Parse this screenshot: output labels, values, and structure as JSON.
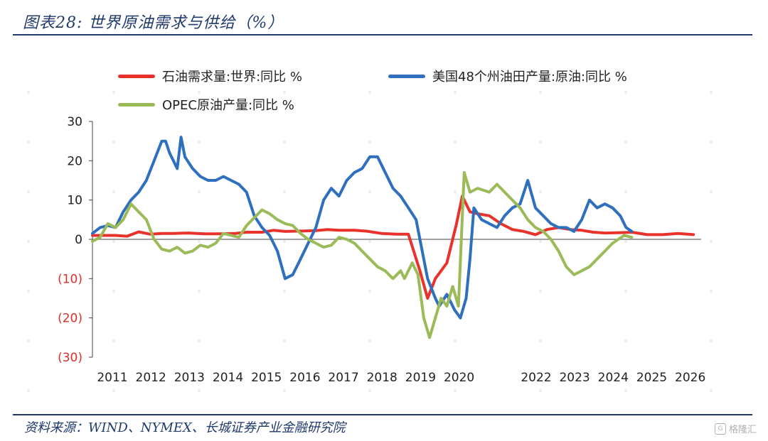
{
  "header": {
    "title": "图表28:  世界原油需求与供给（%）"
  },
  "footer": {
    "source": "资料来源：WIND、NYMEX、长城证券产业金融研究院"
  },
  "watermark": {
    "text": "格隆汇"
  },
  "chart_data": {
    "type": "line",
    "title": "",
    "xlabel": "",
    "ylabel": "",
    "ylim": [
      -30,
      30
    ],
    "xlim": [
      2011,
      2026.8
    ],
    "y_ticks": [
      30,
      20,
      10,
      0,
      -10,
      -20,
      -30
    ],
    "y_tick_labels": [
      "30",
      "20",
      "10",
      "0",
      "(10)",
      "(20)",
      "(30)"
    ],
    "x_ticks": [
      2011,
      2012,
      2013,
      2014,
      2015,
      2016,
      2017,
      2018,
      2019,
      2020,
      2022,
      2023,
      2024,
      2025,
      2026
    ],
    "x_tick_labels": [
      "2011",
      "2012",
      "2013",
      "2014",
      "2015",
      "2016",
      "2017",
      "2018",
      "2019",
      "2020",
      "2022",
      "2023",
      "2024",
      "2025",
      "2026"
    ],
    "grid": false,
    "legend_position": "top",
    "series": [
      {
        "name": "石油需求量:世界:同比 %",
        "color": "#e8322b",
        "x": [
          2011.0,
          2011.3,
          2011.6,
          2011.9,
          2012.2,
          2012.5,
          2012.8,
          2013.1,
          2013.5,
          2013.9,
          2014.3,
          2014.7,
          2015.0,
          2015.4,
          2015.7,
          2016.0,
          2016.4,
          2016.8,
          2017.1,
          2017.4,
          2017.8,
          2018.1,
          2018.5,
          2018.9,
          2019.2,
          2019.5,
          2019.7,
          2019.9,
          2020.05,
          2020.2,
          2020.45,
          2020.6,
          2020.8,
          2021.0,
          2021.3,
          2021.6,
          2021.9,
          2022.2,
          2022.5,
          2022.8,
          2023.1,
          2023.4,
          2023.7,
          2024.0,
          2024.3,
          2024.7,
          2025.0,
          2025.4,
          2025.8,
          2026.2,
          2026.6
        ],
        "y": [
          1.0,
          1.0,
          1.0,
          0.8,
          1.9,
          1.3,
          1.5,
          1.5,
          1.6,
          1.4,
          1.4,
          1.5,
          1.8,
          1.8,
          2.3,
          2.0,
          2.1,
          2.2,
          2.5,
          2.3,
          2.3,
          2.1,
          1.5,
          1.3,
          1.3,
          -8.0,
          -15.0,
          -10.0,
          -8.0,
          -6.0,
          4.0,
          11.0,
          7.0,
          6.5,
          6.0,
          4.0,
          2.5,
          2.0,
          1.2,
          2.5,
          3.0,
          2.5,
          2.3,
          1.8,
          1.6,
          1.7,
          1.8,
          1.2,
          1.2,
          1.5,
          1.2
        ]
      },
      {
        "name": "美国48个州油田产量:原油:同比 %",
        "color": "#2e6fbe",
        "x": [
          2011.0,
          2011.2,
          2011.4,
          2011.6,
          2011.8,
          2012.0,
          2012.2,
          2012.4,
          2012.6,
          2012.8,
          2012.9,
          2013.0,
          2013.1,
          2013.2,
          2013.3,
          2013.4,
          2013.6,
          2013.8,
          2014.0,
          2014.2,
          2014.4,
          2014.6,
          2014.8,
          2015.0,
          2015.2,
          2015.4,
          2015.6,
          2015.8,
          2016.0,
          2016.2,
          2016.4,
          2016.6,
          2016.8,
          2017.0,
          2017.2,
          2017.4,
          2017.6,
          2017.8,
          2018.0,
          2018.2,
          2018.4,
          2018.6,
          2018.8,
          2019.0,
          2019.2,
          2019.4,
          2019.5,
          2019.7,
          2019.9,
          2020.0,
          2020.2,
          2020.4,
          2020.55,
          2020.7,
          2020.8,
          2020.9,
          2021.1,
          2021.3,
          2021.5,
          2021.7,
          2021.9,
          2022.1,
          2022.3,
          2022.5,
          2022.7,
          2022.9,
          2023.1,
          2023.3,
          2023.5,
          2023.7,
          2023.9,
          2024.1,
          2024.3,
          2024.5,
          2024.7,
          2024.85,
          2025.0
        ],
        "y": [
          1.5,
          3.0,
          3.5,
          3.0,
          7.0,
          10.0,
          12.0,
          15.0,
          20.0,
          25.0,
          25.0,
          22.0,
          20.0,
          18.0,
          26.0,
          21.0,
          18.0,
          16.0,
          15.0,
          15.0,
          16.0,
          15.0,
          14.0,
          12.0,
          6.0,
          3.0,
          1.0,
          -3.0,
          -10.0,
          -9.0,
          -5.0,
          -1.0,
          3.0,
          10.0,
          13.0,
          11.0,
          15.0,
          17.0,
          18.0,
          21.0,
          21.0,
          17.0,
          13.0,
          11.0,
          8.0,
          5.0,
          0.0,
          -10.0,
          -15.0,
          -17.0,
          -14.0,
          -18.0,
          -20.0,
          -15.0,
          -5.0,
          8.0,
          5.0,
          4.0,
          3.0,
          6.0,
          8.0,
          9.0,
          15.0,
          8.0,
          6.0,
          4.0,
          3.0,
          3.0,
          2.0,
          5.0,
          10.0,
          8.0,
          9.0,
          8.0,
          6.0,
          3.0,
          2.0
        ]
      },
      {
        "name": "OPEC原油产量:同比 %",
        "color": "#9bbb59",
        "x": [
          2011.0,
          2011.2,
          2011.4,
          2011.6,
          2011.8,
          2012.0,
          2012.2,
          2012.4,
          2012.6,
          2012.8,
          2013.0,
          2013.2,
          2013.4,
          2013.6,
          2013.8,
          2014.0,
          2014.2,
          2014.4,
          2014.6,
          2014.8,
          2015.0,
          2015.2,
          2015.4,
          2015.6,
          2015.8,
          2016.0,
          2016.2,
          2016.4,
          2016.6,
          2016.8,
          2017.0,
          2017.2,
          2017.4,
          2017.6,
          2017.8,
          2018.0,
          2018.2,
          2018.4,
          2018.6,
          2018.8,
          2019.0,
          2019.1,
          2019.3,
          2019.45,
          2019.6,
          2019.75,
          2019.9,
          2020.05,
          2020.2,
          2020.35,
          2020.5,
          2020.65,
          2020.8,
          2021.0,
          2021.3,
          2021.5,
          2021.7,
          2021.9,
          2022.1,
          2022.3,
          2022.5,
          2022.7,
          2022.9,
          2023.1,
          2023.3,
          2023.5,
          2023.7,
          2023.9,
          2024.1,
          2024.3,
          2024.5,
          2024.65,
          2024.8,
          2025.0
        ],
        "y": [
          -0.5,
          0.5,
          4.0,
          3.0,
          5.0,
          9.0,
          7.0,
          5.0,
          0.0,
          -2.5,
          -3.0,
          -2.0,
          -3.5,
          -3.0,
          -1.5,
          -2.0,
          -1.0,
          1.5,
          1.0,
          0.5,
          3.5,
          5.5,
          7.5,
          6.5,
          5.0,
          4.0,
          3.5,
          1.5,
          0.0,
          -1.0,
          -2.0,
          -1.5,
          0.5,
          0.0,
          -1.0,
          -3.0,
          -5.0,
          -7.0,
          -8.0,
          -10.0,
          -8.0,
          -10.0,
          -6.0,
          -9.0,
          -20.0,
          -25.0,
          -20.0,
          -15.0,
          -17.0,
          -12.0,
          -17.0,
          17.0,
          12.0,
          13.0,
          12.0,
          14.0,
          12.0,
          10.0,
          8.0,
          5.0,
          3.0,
          2.0,
          0.0,
          -3.0,
          -7.0,
          -9.0,
          -8.0,
          -7.0,
          -5.0,
          -3.0,
          -1.0,
          0.0,
          1.0,
          0.5
        ]
      }
    ]
  }
}
